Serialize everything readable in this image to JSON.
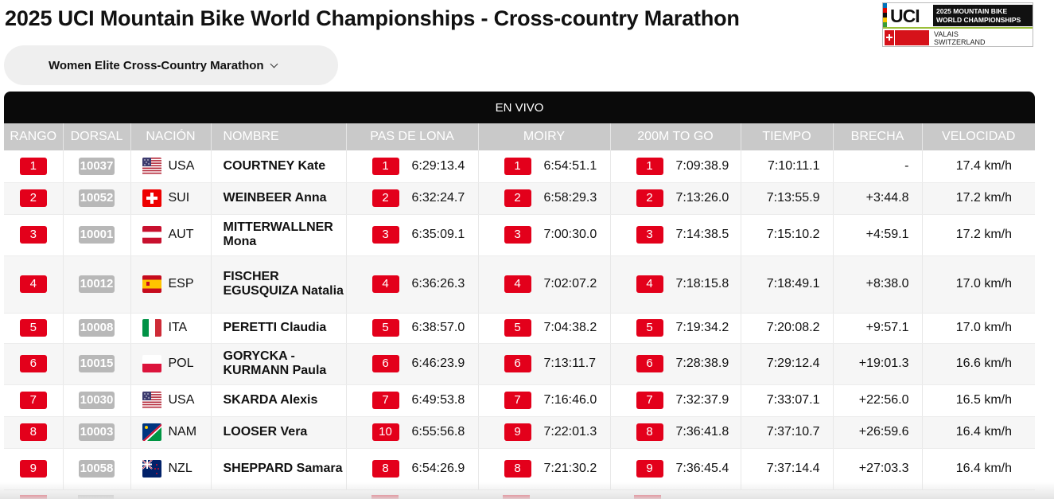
{
  "page": {
    "title": "2025 UCI Mountain Bike World Championships - Cross-country Marathon"
  },
  "logo": {
    "brand": "UCI",
    "line1": "2025 MOUNTAIN BIKE",
    "line2": "WORLD CHAMPIONSHIPS",
    "place1": "VALAIS",
    "place2": "SWITZERLAND",
    "stripe_colors": [
      "#0072bb",
      "#e10600",
      "#111111",
      "#f7c600",
      "#3a9c35"
    ]
  },
  "event_selector": {
    "label": "Women Elite Cross-Country Marathon",
    "icon": "chevron-down-icon"
  },
  "live": {
    "label": "EN VIVO"
  },
  "table": {
    "headers": {
      "rank": "RANGO",
      "bib": "DORSAL",
      "nation": "NACIÓN",
      "name": "NOMBRE",
      "split1": "PAS DE LONA",
      "split2": "MOIRY",
      "split3": "200M TO GO",
      "time": "TIEMPO",
      "gap": "BRECHA",
      "speed": "VELOCIDAD"
    },
    "rows": [
      {
        "rank": "1",
        "bib": "10037",
        "nation": "USA",
        "name": "COURTNEY Kate",
        "s1_rank": "1",
        "s1_time": "6:29:13.4",
        "s2_rank": "1",
        "s2_time": "6:54:51.1",
        "s3_rank": "1",
        "s3_time": "7:09:38.9",
        "time": "7:10:11.1",
        "gap": "-",
        "speed": "17.4 km/h"
      },
      {
        "rank": "2",
        "bib": "10052",
        "nation": "SUI",
        "name": "WEINBEER Anna",
        "s1_rank": "2",
        "s1_time": "6:32:24.7",
        "s2_rank": "2",
        "s2_time": "6:58:29.3",
        "s3_rank": "2",
        "s3_time": "7:13:26.0",
        "time": "7:13:55.9",
        "gap": "+3:44.8",
        "speed": "17.2 km/h"
      },
      {
        "rank": "3",
        "bib": "10001",
        "nation": "AUT",
        "name": "MITTERWALLNER Mona",
        "s1_rank": "3",
        "s1_time": "6:35:09.1",
        "s2_rank": "3",
        "s2_time": "7:00:30.0",
        "s3_rank": "3",
        "s3_time": "7:14:38.5",
        "time": "7:15:10.2",
        "gap": "+4:59.1",
        "speed": "17.2 km/h"
      },
      {
        "rank": "4",
        "bib": "10012",
        "nation": "ESP",
        "name": "FISCHER EGUSQUIZA Natalia",
        "s1_rank": "4",
        "s1_time": "6:36:26.3",
        "s2_rank": "4",
        "s2_time": "7:02:07.2",
        "s3_rank": "4",
        "s3_time": "7:18:15.8",
        "time": "7:18:49.1",
        "gap": "+8:38.0",
        "speed": "17.0 km/h"
      },
      {
        "rank": "5",
        "bib": "10008",
        "nation": "ITA",
        "name": "PERETTI Claudia",
        "s1_rank": "5",
        "s1_time": "6:38:57.0",
        "s2_rank": "5",
        "s2_time": "7:04:38.2",
        "s3_rank": "5",
        "s3_time": "7:19:34.2",
        "time": "7:20:08.2",
        "gap": "+9:57.1",
        "speed": "17.0 km/h"
      },
      {
        "rank": "6",
        "bib": "10015",
        "nation": "POL",
        "name": "GORYCKA - KURMANN Paula",
        "s1_rank": "6",
        "s1_time": "6:46:23.9",
        "s2_rank": "6",
        "s2_time": "7:13:11.7",
        "s3_rank": "6",
        "s3_time": "7:28:38.9",
        "time": "7:29:12.4",
        "gap": "+19:01.3",
        "speed": "16.6 km/h"
      },
      {
        "rank": "7",
        "bib": "10030",
        "nation": "USA",
        "name": "SKARDA Alexis",
        "s1_rank": "7",
        "s1_time": "6:49:53.8",
        "s2_rank": "7",
        "s2_time": "7:16:46.0",
        "s3_rank": "7",
        "s3_time": "7:32:37.9",
        "time": "7:33:07.1",
        "gap": "+22:56.0",
        "speed": "16.5 km/h"
      },
      {
        "rank": "8",
        "bib": "10003",
        "nation": "NAM",
        "name": "LOOSER Vera",
        "s1_rank": "10",
        "s1_time": "6:55:56.8",
        "s2_rank": "9",
        "s2_time": "7:22:01.3",
        "s3_rank": "8",
        "s3_time": "7:36:41.8",
        "time": "7:37:10.7",
        "gap": "+26:59.6",
        "speed": "16.4 km/h"
      },
      {
        "rank": "9",
        "bib": "10058",
        "nation": "NZL",
        "name": "SHEPPARD Samara",
        "s1_rank": "8",
        "s1_time": "6:54:26.9",
        "s2_rank": "8",
        "s2_time": "7:21:30.2",
        "s3_rank": "9",
        "s3_time": "7:36:45.4",
        "time": "7:37:14.4",
        "gap": "+27:03.3",
        "speed": "16.4 km/h"
      }
    ]
  },
  "colors": {
    "rank_badge": "#e3001b",
    "bib_badge": "#b8b8b8",
    "header_bg": "#c9c9c9",
    "live_bar": "#0a0a0a"
  }
}
